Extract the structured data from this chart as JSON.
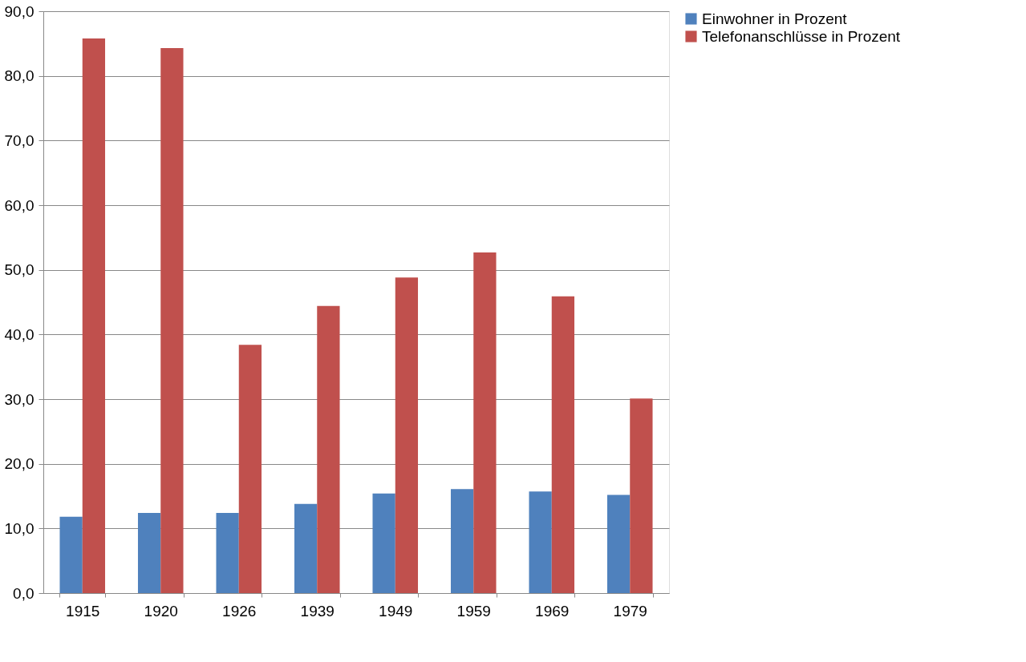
{
  "chart_data": {
    "type": "bar",
    "categories": [
      "1915",
      "1920",
      "1926",
      "1939",
      "1949",
      "1959",
      "1969",
      "1979"
    ],
    "series": [
      {
        "name": "Einwohner in Prozent",
        "color": "#4f81bd",
        "values": [
          11.8,
          12.4,
          12.4,
          13.8,
          15.4,
          16.1,
          15.7,
          15.2
        ]
      },
      {
        "name": "Telefonanschlüsse in Prozent",
        "color": "#c0504d",
        "values": [
          85.8,
          84.3,
          38.4,
          44.4,
          48.8,
          52.7,
          45.9,
          30.1
        ]
      }
    ],
    "ylim": [
      0,
      90
    ],
    "yticks": [
      {
        "value": 0,
        "label": "0,0"
      },
      {
        "value": 10,
        "label": "10,0"
      },
      {
        "value": 20,
        "label": "20,0"
      },
      {
        "value": 30,
        "label": "30,0"
      },
      {
        "value": 40,
        "label": "40,0"
      },
      {
        "value": 50,
        "label": "50,0"
      },
      {
        "value": 60,
        "label": "60,0"
      },
      {
        "value": 70,
        "label": "70,0"
      },
      {
        "value": 80,
        "label": "80,0"
      },
      {
        "value": 90,
        "label": "90,0"
      }
    ],
    "grid": "y",
    "legend": "right"
  }
}
